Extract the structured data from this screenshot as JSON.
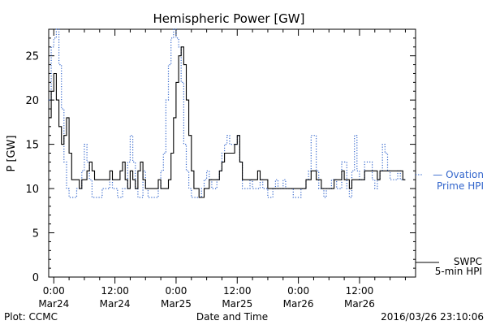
{
  "chart_data": {
    "type": "line",
    "title": "Hemispheric Power [GW]",
    "ylabel": "P [GW]",
    "xlabel": "Date and Time",
    "ylim": [
      0,
      28
    ],
    "y_ticks": [
      0,
      5,
      10,
      15,
      20,
      25
    ],
    "x_ticks": [
      {
        "hours": 0,
        "time": "0:00",
        "date": "Mar24"
      },
      {
        "hours": 12,
        "time": "12:00",
        "date": "Mar24"
      },
      {
        "hours": 24,
        "time": "0:00",
        "date": "Mar25"
      },
      {
        "hours": 36,
        "time": "12:00",
        "date": "Mar25"
      },
      {
        "hours": 48,
        "time": "0:00",
        "date": "Mar26"
      },
      {
        "hours": 60,
        "time": "12:00",
        "date": "Mar26"
      }
    ],
    "xlim_hours": [
      -1,
      71
    ],
    "grid": false,
    "series": [
      {
        "name": "Ovation Prime HPI",
        "legend_lines": [
          "— Ovation",
          "Prime HPI"
        ],
        "color": "#3366cc",
        "style": "dotted",
        "points": [
          [
            -1,
            20
          ],
          [
            -0.5,
            26
          ],
          [
            0,
            27
          ],
          [
            0.5,
            28
          ],
          [
            1,
            24
          ],
          [
            1.5,
            19
          ],
          [
            2,
            13
          ],
          [
            2.5,
            10
          ],
          [
            3,
            9
          ],
          [
            3.5,
            9
          ],
          [
            4,
            9
          ],
          [
            4.5,
            10
          ],
          [
            5,
            10
          ],
          [
            5.5,
            12
          ],
          [
            6,
            15
          ],
          [
            6.5,
            13
          ],
          [
            7,
            11
          ],
          [
            7.5,
            9
          ],
          [
            8,
            9
          ],
          [
            8.5,
            9
          ],
          [
            9,
            9
          ],
          [
            9.5,
            10
          ],
          [
            10,
            10
          ],
          [
            10.5,
            10
          ],
          [
            11,
            11
          ],
          [
            11.5,
            10
          ],
          [
            12,
            10
          ],
          [
            12.5,
            9
          ],
          [
            13,
            9
          ],
          [
            13.5,
            10
          ],
          [
            14,
            10
          ],
          [
            14.5,
            13
          ],
          [
            15,
            16
          ],
          [
            15.5,
            13
          ],
          [
            16,
            10
          ],
          [
            16.5,
            9
          ],
          [
            17,
            9
          ],
          [
            17.5,
            12
          ],
          [
            18,
            10
          ],
          [
            18.5,
            9
          ],
          [
            19,
            9
          ],
          [
            19.5,
            9
          ],
          [
            20,
            9
          ],
          [
            20.5,
            10
          ],
          [
            21,
            12
          ],
          [
            21.5,
            14
          ],
          [
            22,
            20
          ],
          [
            22.5,
            24
          ],
          [
            23,
            27
          ],
          [
            23.5,
            28
          ],
          [
            24,
            27
          ],
          [
            24.5,
            26
          ],
          [
            25,
            22
          ],
          [
            25.5,
            15
          ],
          [
            26,
            12
          ],
          [
            26.5,
            10
          ],
          [
            27,
            9
          ],
          [
            27.5,
            9
          ],
          [
            28,
            9
          ],
          [
            28.5,
            9
          ],
          [
            29,
            10
          ],
          [
            29.5,
            11
          ],
          [
            30,
            12
          ],
          [
            30.5,
            11
          ],
          [
            31,
            10
          ],
          [
            31.5,
            10
          ],
          [
            32,
            11
          ],
          [
            32.5,
            12
          ],
          [
            33,
            14
          ],
          [
            33.5,
            15
          ],
          [
            34,
            16
          ],
          [
            34.5,
            15
          ],
          [
            35,
            15
          ],
          [
            35.5,
            15
          ],
          [
            36,
            16
          ],
          [
            36.5,
            13
          ],
          [
            37,
            10
          ],
          [
            37.5,
            10
          ],
          [
            38,
            10
          ],
          [
            38.5,
            11
          ],
          [
            39,
            10
          ],
          [
            39.5,
            10
          ],
          [
            40,
            10
          ],
          [
            40.5,
            11
          ],
          [
            41,
            10
          ],
          [
            41.5,
            10
          ],
          [
            42,
            9
          ],
          [
            42.5,
            9
          ],
          [
            43,
            10
          ],
          [
            43.5,
            11
          ],
          [
            44,
            10
          ],
          [
            44.5,
            10
          ],
          [
            45,
            11
          ],
          [
            45.5,
            10
          ],
          [
            46,
            10
          ],
          [
            46.5,
            10
          ],
          [
            47,
            9
          ],
          [
            47.5,
            9
          ],
          [
            48,
            9
          ],
          [
            48.5,
            10
          ],
          [
            49,
            10
          ],
          [
            49.5,
            11
          ],
          [
            50,
            12
          ],
          [
            50.5,
            16
          ],
          [
            51,
            16
          ],
          [
            51.5,
            12
          ],
          [
            52,
            10
          ],
          [
            52.5,
            10
          ],
          [
            53,
            9
          ],
          [
            53.5,
            10
          ],
          [
            54,
            10
          ],
          [
            54.5,
            11
          ],
          [
            55,
            11
          ],
          [
            55.5,
            10
          ],
          [
            56,
            10
          ],
          [
            56.5,
            13
          ],
          [
            57,
            13
          ],
          [
            57.5,
            10
          ],
          [
            58,
            9
          ],
          [
            58.5,
            12
          ],
          [
            59,
            16
          ],
          [
            59.5,
            12
          ],
          [
            60,
            11
          ],
          [
            60.5,
            11
          ],
          [
            61,
            13
          ],
          [
            61.5,
            13
          ],
          [
            62,
            13
          ],
          [
            62.5,
            11
          ],
          [
            63,
            10
          ],
          [
            63.5,
            11
          ],
          [
            64,
            12
          ],
          [
            64.5,
            15
          ],
          [
            65,
            14
          ],
          [
            65.5,
            12
          ],
          [
            66,
            11
          ],
          [
            66.5,
            11
          ],
          [
            67,
            11
          ],
          [
            67.5,
            12
          ],
          [
            68,
            11
          ],
          [
            68.5,
            11
          ],
          [
            69,
            11
          ]
        ]
      },
      {
        "name": "SWPC 5-min HPI",
        "legend_lines": [
          "SWPC",
          "5-min HPI"
        ],
        "color": "#000000",
        "style": "solid",
        "points": [
          [
            -1,
            18
          ],
          [
            -0.5,
            21
          ],
          [
            0,
            23
          ],
          [
            0.5,
            20
          ],
          [
            1,
            17
          ],
          [
            1.5,
            15
          ],
          [
            2,
            16
          ],
          [
            2.5,
            18
          ],
          [
            3,
            14
          ],
          [
            3.5,
            11
          ],
          [
            4,
            11
          ],
          [
            4.5,
            11
          ],
          [
            5,
            10
          ],
          [
            5.5,
            11
          ],
          [
            6,
            11
          ],
          [
            6.5,
            12
          ],
          [
            7,
            13
          ],
          [
            7.5,
            12
          ],
          [
            8,
            11
          ],
          [
            8.5,
            11
          ],
          [
            9,
            11
          ],
          [
            9.5,
            11
          ],
          [
            10,
            11
          ],
          [
            10.5,
            11
          ],
          [
            11,
            12
          ],
          [
            11.5,
            11
          ],
          [
            12,
            11
          ],
          [
            12.5,
            11
          ],
          [
            13,
            12
          ],
          [
            13.5,
            13
          ],
          [
            14,
            11
          ],
          [
            14.5,
            10
          ],
          [
            15,
            12
          ],
          [
            15.5,
            11
          ],
          [
            16,
            10
          ],
          [
            16.5,
            12
          ],
          [
            17,
            13
          ],
          [
            17.5,
            11
          ],
          [
            18,
            10
          ],
          [
            18.5,
            10
          ],
          [
            19,
            10
          ],
          [
            19.5,
            10
          ],
          [
            20,
            10
          ],
          [
            20.5,
            11
          ],
          [
            21,
            10
          ],
          [
            21.5,
            10
          ],
          [
            22,
            10
          ],
          [
            22.5,
            11
          ],
          [
            23,
            14
          ],
          [
            23.5,
            18
          ],
          [
            24,
            22
          ],
          [
            24.5,
            25
          ],
          [
            25,
            26
          ],
          [
            25.5,
            24
          ],
          [
            26,
            20
          ],
          [
            26.5,
            16
          ],
          [
            27,
            12
          ],
          [
            27.5,
            10
          ],
          [
            28,
            10
          ],
          [
            28.5,
            9
          ],
          [
            29,
            9
          ],
          [
            29.5,
            10
          ],
          [
            30,
            10
          ],
          [
            30.5,
            11
          ],
          [
            31,
            11
          ],
          [
            31.5,
            11
          ],
          [
            32,
            11
          ],
          [
            32.5,
            12
          ],
          [
            33,
            13
          ],
          [
            33.5,
            14
          ],
          [
            34,
            14
          ],
          [
            34.5,
            14
          ],
          [
            35,
            14
          ],
          [
            35.5,
            15
          ],
          [
            36,
            16
          ],
          [
            36.5,
            13
          ],
          [
            37,
            11
          ],
          [
            37.5,
            11
          ],
          [
            38,
            11
          ],
          [
            38.5,
            11
          ],
          [
            39,
            11
          ],
          [
            39.5,
            11
          ],
          [
            40,
            12
          ],
          [
            40.5,
            11
          ],
          [
            41,
            11
          ],
          [
            41.5,
            11
          ],
          [
            42,
            10
          ],
          [
            42.5,
            10
          ],
          [
            43,
            10
          ],
          [
            43.5,
            10
          ],
          [
            44,
            10
          ],
          [
            44.5,
            10
          ],
          [
            45,
            10
          ],
          [
            45.5,
            10
          ],
          [
            46,
            10
          ],
          [
            46.5,
            10
          ],
          [
            47,
            10
          ],
          [
            47.5,
            10
          ],
          [
            48,
            10
          ],
          [
            48.5,
            10
          ],
          [
            49,
            10
          ],
          [
            49.5,
            11
          ],
          [
            50,
            11
          ],
          [
            50.5,
            12
          ],
          [
            51,
            12
          ],
          [
            51.5,
            11
          ],
          [
            52,
            11
          ],
          [
            52.5,
            10
          ],
          [
            53,
            10
          ],
          [
            53.5,
            10
          ],
          [
            54,
            10
          ],
          [
            54.5,
            10
          ],
          [
            55,
            11
          ],
          [
            55.5,
            11
          ],
          [
            56,
            11
          ],
          [
            56.5,
            12
          ],
          [
            57,
            11
          ],
          [
            57.5,
            11
          ],
          [
            58,
            10
          ],
          [
            58.5,
            11
          ],
          [
            59,
            11
          ],
          [
            59.5,
            11
          ],
          [
            60,
            11
          ],
          [
            60.5,
            11
          ],
          [
            61,
            12
          ],
          [
            61.5,
            12
          ],
          [
            62,
            12
          ],
          [
            62.5,
            12
          ],
          [
            63,
            12
          ],
          [
            63.5,
            11
          ],
          [
            64,
            12
          ],
          [
            64.5,
            12
          ],
          [
            65,
            12
          ],
          [
            65.5,
            12
          ],
          [
            66,
            12
          ],
          [
            66.5,
            12
          ],
          [
            67,
            12
          ],
          [
            67.5,
            12
          ],
          [
            68,
            12
          ],
          [
            68.5,
            11
          ],
          [
            69,
            11
          ]
        ]
      }
    ]
  },
  "footer": {
    "left": "Plot: CCMC",
    "right": "2016/03/26 23:10:06"
  }
}
